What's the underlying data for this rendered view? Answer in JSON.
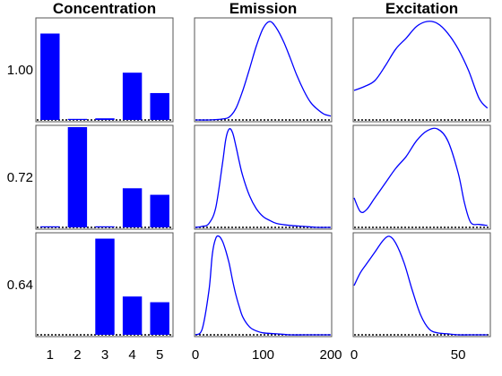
{
  "chart_data": {
    "type": "bar+line small multiples",
    "columns": [
      {
        "title": "Concentration",
        "kind": "bar",
        "x_ticks": [
          "1",
          "2",
          "3",
          "4",
          "5"
        ]
      },
      {
        "title": "Emission",
        "kind": "line",
        "x_ticks": [
          "0",
          "100",
          "200"
        ],
        "xlim": [
          0,
          200
        ]
      },
      {
        "title": "Excitation",
        "kind": "line",
        "x_ticks": [
          "0",
          "50"
        ],
        "xlim": [
          0,
          65
        ]
      }
    ],
    "rows": [
      {
        "label": "1.00",
        "concentration": [
          1.06,
          0.01,
          0.02,
          0.58,
          0.33
        ],
        "emission": {
          "x": [
            0,
            20,
            40,
            50,
            60,
            70,
            80,
            90,
            100,
            110,
            120,
            130,
            140,
            150,
            160,
            170,
            180,
            190,
            200
          ],
          "y": [
            0,
            0,
            0.01,
            0.03,
            0.12,
            0.3,
            0.52,
            0.75,
            0.93,
            1.0,
            0.93,
            0.8,
            0.63,
            0.45,
            0.3,
            0.18,
            0.11,
            0.06,
            0.04
          ]
        },
        "excitation": {
          "x": [
            0,
            5,
            10,
            15,
            20,
            25,
            30,
            35,
            40,
            45,
            50,
            55,
            60,
            64
          ],
          "y": [
            0.3,
            0.34,
            0.4,
            0.55,
            0.72,
            0.83,
            0.95,
            1.0,
            0.98,
            0.88,
            0.72,
            0.5,
            0.22,
            0.12
          ]
        }
      },
      {
        "label": "0.72",
        "concentration": [
          0.01,
          1.23,
          0.01,
          0.48,
          0.4
        ],
        "emission": {
          "x": [
            0,
            10,
            20,
            30,
            40,
            45,
            50,
            55,
            60,
            65,
            70,
            80,
            90,
            100,
            110,
            120,
            140,
            160,
            180,
            200
          ],
          "y": [
            0,
            0.01,
            0.04,
            0.2,
            0.65,
            0.9,
            1.0,
            0.96,
            0.82,
            0.66,
            0.52,
            0.32,
            0.19,
            0.11,
            0.07,
            0.04,
            0.02,
            0.01,
            0,
            0
          ]
        },
        "excitation": {
          "x": [
            0,
            3,
            6,
            10,
            15,
            20,
            25,
            30,
            35,
            40,
            45,
            50,
            53,
            56,
            60,
            64
          ],
          "y": [
            0.3,
            0.16,
            0.18,
            0.3,
            0.45,
            0.6,
            0.72,
            0.88,
            0.98,
            1.0,
            0.88,
            0.55,
            0.25,
            0.05,
            0.03,
            0.02
          ]
        }
      },
      {
        "label": "0.64",
        "concentration": [
          0,
          0,
          1.18,
          0.47,
          0.4
        ],
        "emission": {
          "x": [
            0,
            10,
            20,
            25,
            30,
            35,
            40,
            45,
            50,
            55,
            60,
            65,
            70,
            80,
            90,
            100,
            120,
            140,
            160,
            180,
            200
          ],
          "y": [
            0,
            0.06,
            0.45,
            0.82,
            0.98,
            1.0,
            0.95,
            0.85,
            0.72,
            0.55,
            0.4,
            0.28,
            0.18,
            0.08,
            0.04,
            0.02,
            0.01,
            0,
            0,
            0,
            0
          ]
        },
        "excitation": {
          "x": [
            0,
            3,
            6,
            10,
            14,
            17,
            20,
            24,
            28,
            32,
            36,
            40,
            45,
            50,
            55,
            60,
            64
          ],
          "y": [
            0.5,
            0.63,
            0.72,
            0.84,
            0.96,
            1.0,
            0.93,
            0.73,
            0.45,
            0.2,
            0.06,
            0.02,
            0.01,
            0,
            0,
            0,
            0
          ]
        }
      }
    ],
    "colors": {
      "bar": "#0000FF",
      "line": "#0000FF"
    }
  }
}
